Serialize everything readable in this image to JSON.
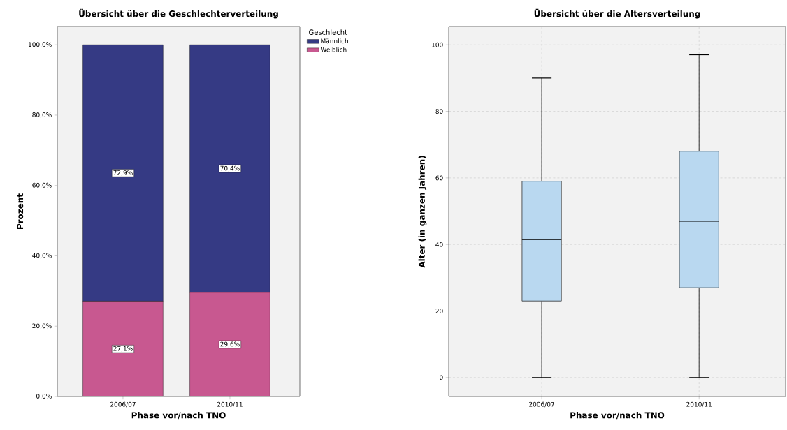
{
  "chart_data": [
    {
      "type": "bar",
      "stacked": true,
      "title": "Übersicht über die Geschlechterverteilung",
      "xlabel": "Phase vor/nach TNO",
      "ylabel": "Prozent",
      "legend_title": "Geschlecht",
      "legend": "top right",
      "categories": [
        "2006/07",
        "2010/11"
      ],
      "series": [
        {
          "name": "Weiblich",
          "color": "#c85890",
          "values": [
            27.1,
            29.6
          ],
          "value_labels": [
            "27,1%",
            "29,6%"
          ]
        },
        {
          "name": "Männlich",
          "color": "#353a84",
          "values": [
            72.9,
            70.4
          ],
          "value_labels": [
            "72,9%",
            "70,4%"
          ]
        }
      ],
      "ylim": [
        0,
        105.2
      ],
      "yticks": [
        {
          "value": 0,
          "label": "0,0%"
        },
        {
          "value": 20,
          "label": "20,0%"
        },
        {
          "value": 40,
          "label": "40,0%"
        },
        {
          "value": 60,
          "label": "60,0%"
        },
        {
          "value": 80,
          "label": "80,0%"
        },
        {
          "value": 100,
          "label": "100,0%"
        }
      ]
    },
    {
      "type": "box",
      "title": "Übersicht über die Altersverteilung",
      "xlabel": "Phase vor/nach TNO",
      "ylabel": "Alter (in ganzen Jahren)",
      "grid": true,
      "color": "#b9d8f0",
      "categories": [
        "2006/07",
        "2010/11"
      ],
      "boxes": [
        {
          "low": 0,
          "q1": 23,
          "median": 41.5,
          "q3": 59,
          "high": 90
        },
        {
          "low": 0,
          "q1": 27,
          "median": 47,
          "q3": 68,
          "high": 97
        }
      ],
      "ylim": [
        -5.7,
        105.5
      ],
      "yticks": [
        0,
        20,
        40,
        60,
        80,
        100
      ]
    }
  ]
}
